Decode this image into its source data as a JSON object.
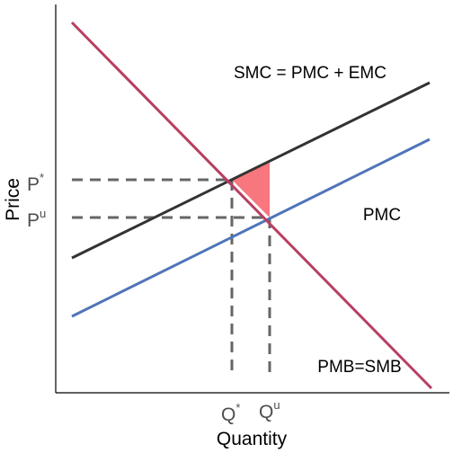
{
  "axes": {
    "x_label": "Quantity",
    "y_label": "Price"
  },
  "ticks": {
    "p_star": {
      "base": "P",
      "sup": "*"
    },
    "p_u": {
      "base": "P",
      "sup": "u"
    },
    "q_star": {
      "base": "Q",
      "sup": "*"
    },
    "q_u": {
      "base": "Q",
      "sup": "u"
    }
  },
  "curves": {
    "smc": "SMC = PMC + EMC",
    "pmc": "PMC",
    "pmb": "PMB=SMB"
  }
}
